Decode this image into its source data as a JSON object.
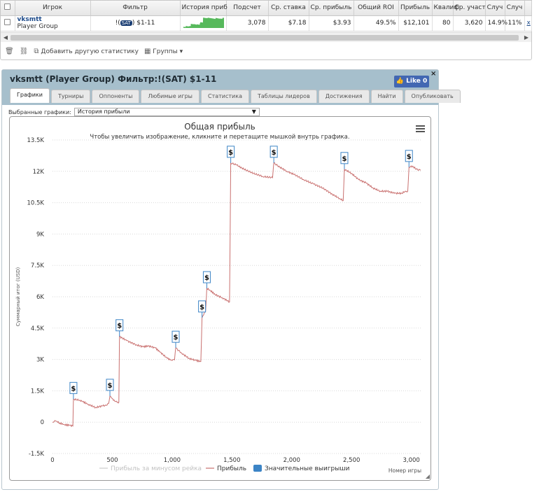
{
  "table": {
    "headers": [
      "Игрок",
      "Фильтр",
      "История приб",
      "Подсчет",
      "Ср. ставка",
      "Ср. прибыль",
      "Общий ROI",
      "Прибыль",
      "Квалиф",
      "Ср. участ",
      "Случ",
      "Случ"
    ],
    "row": {
      "player": "vksmtt",
      "group": "Player Group",
      "filter_prefix": "!(",
      "filter_badge": "SAT",
      "filter_suffix": ") $1-11",
      "count": "3,078",
      "avg_stake": "$7.18",
      "avg_profit": "$3.93",
      "roi": "49.5%",
      "profit": "$12,101",
      "qual": "80",
      "avg_field": "3,620",
      "rand1": "14.9%",
      "rand2": "11%",
      "close": "x"
    }
  },
  "toolbar": {
    "add_stat": "Добавить другую статистику",
    "groups": "Группы"
  },
  "window": {
    "title": "vksmtt (Player Group) Фильтр:!(SAT) $1-11",
    "like": "Like 0",
    "close": "×",
    "tabs": [
      "Графики",
      "Турниры",
      "Оппоненты",
      "Любимые игры",
      "Статистика",
      "Таблицы лидеров",
      "Достижения",
      "Найти",
      "Опубликовать"
    ],
    "active_tab": 0,
    "select_label": "Выбранные графики:",
    "select_value": "История прибыли"
  },
  "chart_data": {
    "type": "line",
    "title": "Общая прибыль",
    "subtitle": "Чтобы увеличить изображение, кликните и перетащите мышкой внутрь графика.",
    "xlabel": "Номер игры",
    "ylabel": "Суммарный итог (USD)",
    "xlim": [
      0,
      3078
    ],
    "ylim": [
      -1500,
      13500
    ],
    "x_ticks": [
      0,
      500,
      1000,
      1500,
      2000,
      2500,
      3000
    ],
    "x_tick_labels": [
      "0",
      "500",
      "1,000",
      "1,500",
      "2,000",
      "2,500",
      "3,000"
    ],
    "y_ticks": [
      -1500,
      0,
      1500,
      3000,
      4500,
      6000,
      7500,
      9000,
      10500,
      12000,
      13500
    ],
    "y_tick_labels": [
      "-1.5K",
      "0",
      "1.5K",
      "3K",
      "4.5K",
      "6K",
      "7.5K",
      "9K",
      "10.5K",
      "12K",
      "13.5K"
    ],
    "grid": "horizontal dashed",
    "legend_position": "bottom",
    "legend": [
      {
        "label": "Прибыль за минусом рейка",
        "color": "#cccccc",
        "kind": "line"
      },
      {
        "label": "Прибыль",
        "color": "#c9706f",
        "kind": "line"
      },
      {
        "label": "Значительные выигрыши",
        "color": "#3c84c6",
        "kind": "box"
      }
    ],
    "series": [
      {
        "name": "Прибыль",
        "color": "#c9706f",
        "points": [
          [
            0,
            0
          ],
          [
            20,
            80
          ],
          [
            60,
            -40
          ],
          [
            100,
            -120
          ],
          [
            140,
            -150
          ],
          [
            170,
            -180
          ],
          [
            175,
            1100
          ],
          [
            230,
            1050
          ],
          [
            300,
            850
          ],
          [
            360,
            700
          ],
          [
            420,
            780
          ],
          [
            450,
            800
          ],
          [
            470,
            900
          ],
          [
            480,
            1250
          ],
          [
            520,
            1000
          ],
          [
            540,
            950
          ],
          [
            555,
            950
          ],
          [
            560,
            4100
          ],
          [
            620,
            3900
          ],
          [
            700,
            3700
          ],
          [
            760,
            3600
          ],
          [
            800,
            3650
          ],
          [
            860,
            3550
          ],
          [
            900,
            3350
          ],
          [
            960,
            3050
          ],
          [
            1000,
            2950
          ],
          [
            1020,
            2980
          ],
          [
            1030,
            3550
          ],
          [
            1080,
            3300
          ],
          [
            1140,
            3050
          ],
          [
            1200,
            2950
          ],
          [
            1240,
            2900
          ],
          [
            1250,
            5000
          ],
          [
            1270,
            5250
          ],
          [
            1280,
            5300
          ],
          [
            1290,
            6400
          ],
          [
            1320,
            6300
          ],
          [
            1360,
            6100
          ],
          [
            1420,
            5950
          ],
          [
            1480,
            5750
          ],
          [
            1490,
            12400
          ],
          [
            1540,
            12300
          ],
          [
            1600,
            12100
          ],
          [
            1680,
            11900
          ],
          [
            1760,
            11750
          ],
          [
            1840,
            11700
          ],
          [
            1850,
            12400
          ],
          [
            1900,
            12200
          ],
          [
            1960,
            12000
          ],
          [
            2020,
            11850
          ],
          [
            2100,
            11600
          ],
          [
            2180,
            11400
          ],
          [
            2260,
            11200
          ],
          [
            2340,
            10900
          ],
          [
            2400,
            10700
          ],
          [
            2430,
            10600
          ],
          [
            2440,
            12100
          ],
          [
            2500,
            11900
          ],
          [
            2560,
            11600
          ],
          [
            2620,
            11450
          ],
          [
            2680,
            11200
          ],
          [
            2740,
            11050
          ],
          [
            2800,
            11050
          ],
          [
            2860,
            10950
          ],
          [
            2920,
            10950
          ],
          [
            2950,
            11050
          ],
          [
            2970,
            11050
          ],
          [
            2980,
            12200
          ],
          [
            3010,
            12250
          ],
          [
            3040,
            12100
          ],
          [
            3078,
            12050
          ]
        ]
      }
    ],
    "big_wins": [
      175,
      480,
      560,
      1030,
      1250,
      1290,
      1490,
      1850,
      2440,
      2980
    ],
    "big_win_marker": "$"
  }
}
